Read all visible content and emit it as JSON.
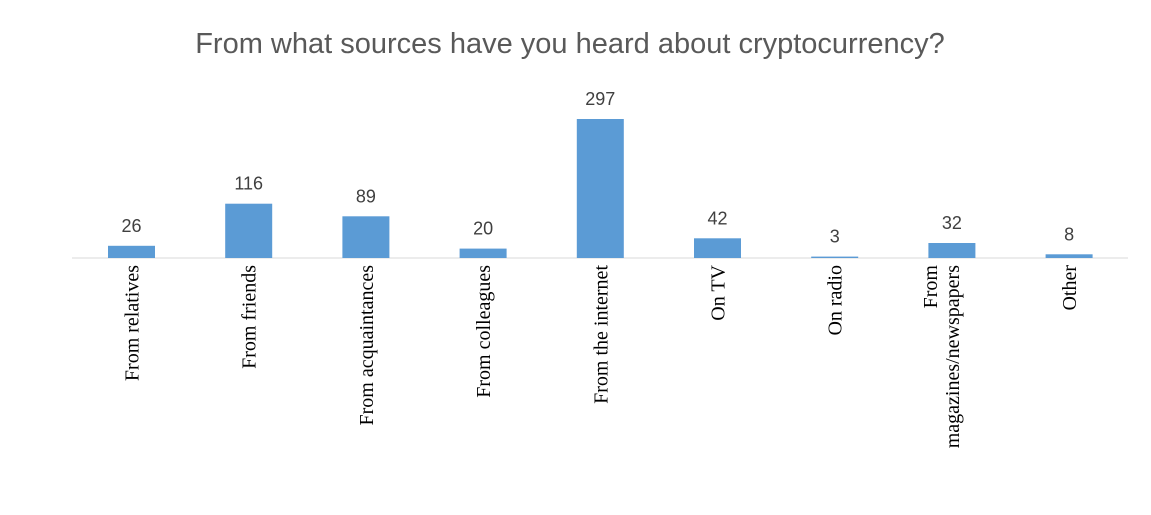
{
  "chart_data": {
    "type": "bar",
    "title": "From what sources have you heard about cryptocurrency?",
    "xlabel": "",
    "ylabel": "",
    "categories": [
      "From relatives",
      "From friends",
      "From acquaintances",
      "From colleagues",
      "From the internet",
      "On TV",
      "On radio",
      "From magazines/newspapers",
      "Other"
    ],
    "category_label_lines": [
      [
        "From relatives"
      ],
      [
        "From friends"
      ],
      [
        "From acquaintances"
      ],
      [
        "From colleagues"
      ],
      [
        "From the internet"
      ],
      [
        "On TV"
      ],
      [
        "On radio"
      ],
      [
        "From",
        "magazines/newspapers"
      ],
      [
        "Other"
      ]
    ],
    "values": [
      26,
      116,
      89,
      20,
      297,
      42,
      3,
      32,
      8
    ],
    "ylim": [
      0,
      297
    ],
    "grid": false,
    "legend": "none",
    "bar_color": "#5b9bd5"
  }
}
